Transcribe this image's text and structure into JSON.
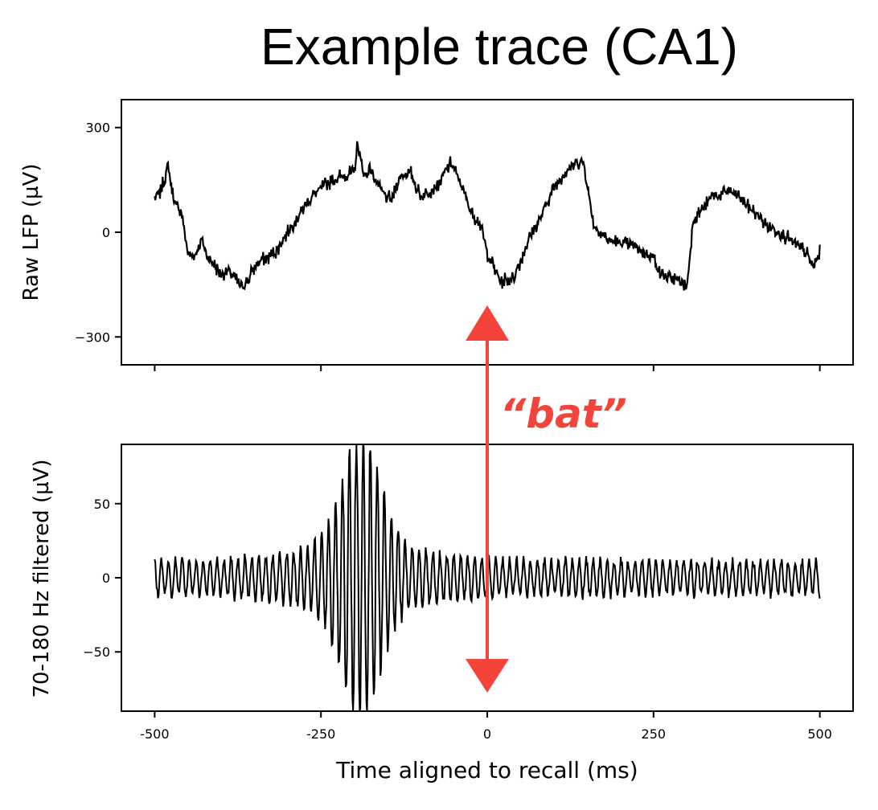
{
  "title": "Example trace (CA1)",
  "annotation": {
    "text": "“bat”",
    "color": "#f4433a",
    "x": 0
  },
  "chart_data": [
    {
      "type": "line",
      "name": "raw",
      "ylabel": "Raw LFP (µV)",
      "xlim": [
        -550,
        550
      ],
      "ylim": [
        -380,
        380
      ],
      "yticks": [
        300,
        0,
        -300
      ],
      "ytick_labels": [
        "300",
        "0",
        "−300"
      ],
      "xticks": [
        -500,
        -250,
        0,
        250,
        500
      ],
      "xtick_labels_visible": false,
      "color": "#000000",
      "anchors": {
        "x": [
          -500,
          -490,
          -480,
          -470,
          -460,
          -450,
          -440,
          -430,
          -420,
          -400,
          -390,
          -380,
          -370,
          -360,
          -350,
          -340,
          -330,
          -320,
          -300,
          -280,
          -260,
          -240,
          -220,
          -200,
          -195,
          -185,
          -175,
          -160,
          -145,
          -130,
          -115,
          -100,
          -85,
          -70,
          -55,
          -40,
          -25,
          -10,
          0,
          10,
          20,
          40,
          60,
          80,
          100,
          120,
          135,
          145,
          160,
          180,
          200,
          220,
          240,
          250,
          260,
          290,
          300,
          310,
          330,
          340,
          350,
          360,
          380,
          400,
          420,
          440,
          460,
          480,
          490,
          500
        ],
        "y": [
          100,
          120,
          190,
          80,
          60,
          -60,
          -70,
          -20,
          -70,
          -120,
          -110,
          -130,
          -160,
          -140,
          -100,
          -80,
          -70,
          -60,
          0,
          60,
          110,
          140,
          160,
          170,
          250,
          160,
          180,
          120,
          90,
          160,
          170,
          100,
          120,
          150,
          200,
          140,
          60,
          20,
          -60,
          -100,
          -140,
          -130,
          -30,
          40,
          130,
          180,
          200,
          200,
          20,
          -20,
          -30,
          -40,
          -60,
          -70,
          -120,
          -140,
          -160,
          40,
          80,
          110,
          100,
          120,
          100,
          60,
          20,
          0,
          -30,
          -60,
          -100,
          -60
        ]
      },
      "noise_amplitude": 25,
      "n_points": 1000
    },
    {
      "type": "line",
      "name": "filtered",
      "ylabel": "70-180 Hz filtered (µV)",
      "xlabel": "Time aligned to recall (ms)",
      "xlim": [
        -550,
        550
      ],
      "ylim": [
        -90,
        90
      ],
      "yticks": [
        50,
        0,
        -50
      ],
      "ytick_labels": [
        "50",
        "0",
        "−50"
      ],
      "xticks": [
        -500,
        -250,
        0,
        250,
        500
      ],
      "xtick_labels": [
        "-500",
        "-250",
        "0",
        "250",
        "500"
      ],
      "color": "#000000",
      "burst_center_ms": -190,
      "burst_peak_uv": 75,
      "baseline_amplitude_uv": 15,
      "n_points": 1000
    }
  ]
}
